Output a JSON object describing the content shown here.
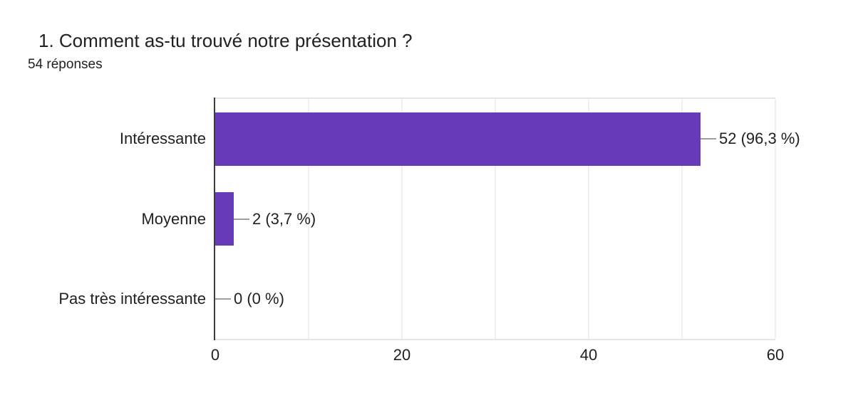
{
  "chart_data": {
    "type": "bar",
    "orientation": "horizontal",
    "title": "1. Comment as-tu trouvé notre présentation ?",
    "subtitle": "54 réponses",
    "total_responses": 54,
    "categories": [
      "Intéressante",
      "Moyenne",
      "Pas très intéressante"
    ],
    "values": [
      52,
      2,
      0
    ],
    "value_labels": [
      "52 (96,3 %)",
      "2 (3,7 %)",
      "0 (0 %)"
    ],
    "xlim": [
      0,
      60
    ],
    "x_ticks": [
      0,
      20,
      40,
      60
    ],
    "x_tick_labels": [
      "0",
      "20",
      "40",
      "60"
    ],
    "gridline_step": 10,
    "grid": true,
    "legend": "none",
    "colors": {
      "bar": "#673ab7",
      "axis_line": "#3c3c3c",
      "gridline": "#f0f0f0",
      "plot_border": "#e6e6e6",
      "text": "#212121",
      "connector": "#9e9e9e"
    }
  }
}
